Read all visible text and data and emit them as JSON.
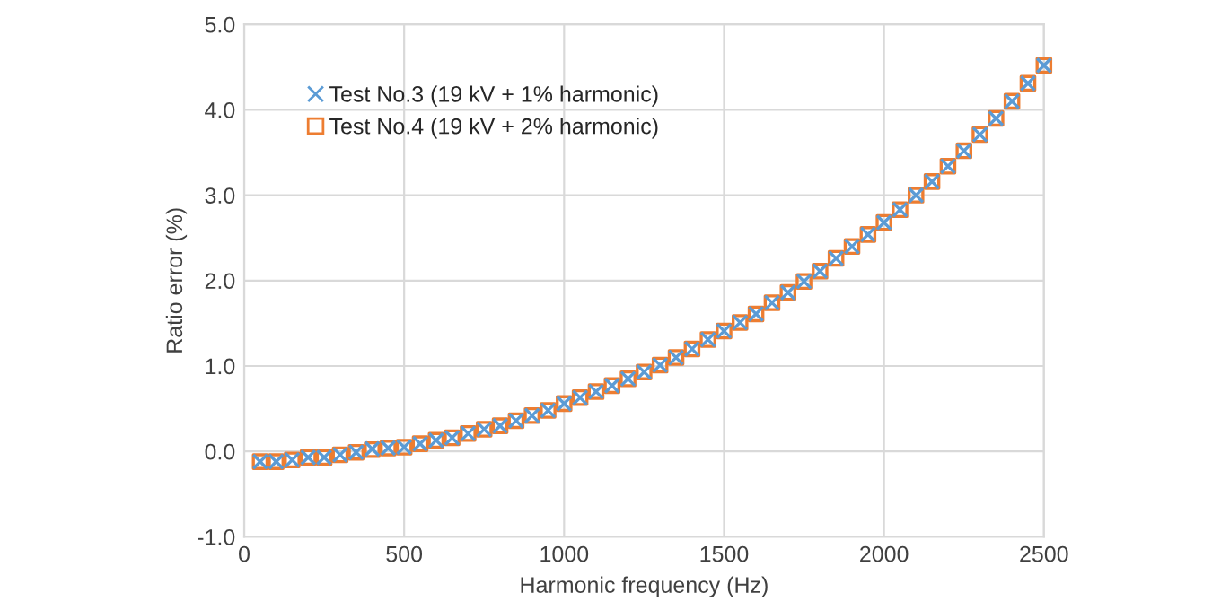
{
  "chart_data": {
    "type": "scatter",
    "xlabel": "Harmonic frequency (Hz)",
    "ylabel": "Ratio error (%)",
    "x": [
      50,
      100,
      150,
      200,
      250,
      300,
      350,
      400,
      450,
      500,
      550,
      600,
      650,
      700,
      750,
      800,
      850,
      900,
      950,
      1000,
      1050,
      1100,
      1150,
      1200,
      1250,
      1300,
      1350,
      1400,
      1450,
      1500,
      1550,
      1600,
      1650,
      1700,
      1750,
      1800,
      1850,
      1900,
      1950,
      2000,
      2050,
      2100,
      2150,
      2200,
      2250,
      2300,
      2350,
      2400,
      2450,
      2500
    ],
    "series": [
      {
        "name": "Test No.3 (19 kV + 1% harmonic)",
        "color": "#5b9bd5",
        "marker": "cross",
        "values": [
          -0.12,
          -0.12,
          -0.1,
          -0.07,
          -0.07,
          -0.04,
          -0.01,
          0.03,
          0.04,
          0.05,
          0.09,
          0.13,
          0.16,
          0.21,
          0.26,
          0.3,
          0.36,
          0.42,
          0.48,
          0.56,
          0.63,
          0.7,
          0.77,
          0.85,
          0.93,
          1.01,
          1.1,
          1.2,
          1.31,
          1.41,
          1.51,
          1.61,
          1.74,
          1.86,
          1.99,
          2.11,
          2.26,
          2.4,
          2.54,
          2.68,
          2.83,
          3.0,
          3.16,
          3.34,
          3.52,
          3.71,
          3.9,
          4.1,
          4.31,
          4.52
        ]
      },
      {
        "name": "Test No.4 (19 kV + 2% harmonic)",
        "color": "#ed7d31",
        "marker": "square",
        "values": [
          -0.12,
          -0.12,
          -0.1,
          -0.07,
          -0.07,
          -0.04,
          -0.01,
          0.02,
          0.04,
          0.05,
          0.09,
          0.13,
          0.16,
          0.21,
          0.26,
          0.3,
          0.36,
          0.42,
          0.48,
          0.56,
          0.63,
          0.7,
          0.77,
          0.85,
          0.93,
          1.01,
          1.1,
          1.2,
          1.31,
          1.41,
          1.51,
          1.61,
          1.74,
          1.86,
          1.99,
          2.11,
          2.26,
          2.4,
          2.54,
          2.68,
          2.83,
          3.0,
          3.16,
          3.34,
          3.52,
          3.71,
          3.9,
          4.1,
          4.31,
          4.52
        ]
      }
    ],
    "xlim": [
      0,
      2500
    ],
    "xticks": [
      0,
      500,
      1000,
      1500,
      2000,
      2500
    ],
    "ylim": [
      -1.0,
      5.0
    ],
    "yticks": [
      {
        "value": -1.0,
        "label": "-1.0"
      },
      {
        "value": 0.0,
        "label": "0.0"
      },
      {
        "value": 1.0,
        "label": "1.0"
      },
      {
        "value": 2.0,
        "label": "2.0"
      },
      {
        "value": 3.0,
        "label": "3.0"
      },
      {
        "value": 4.0,
        "label": "4.0"
      },
      {
        "value": 5.0,
        "label": "5.0"
      }
    ],
    "grid": true,
    "legend": "top left"
  }
}
